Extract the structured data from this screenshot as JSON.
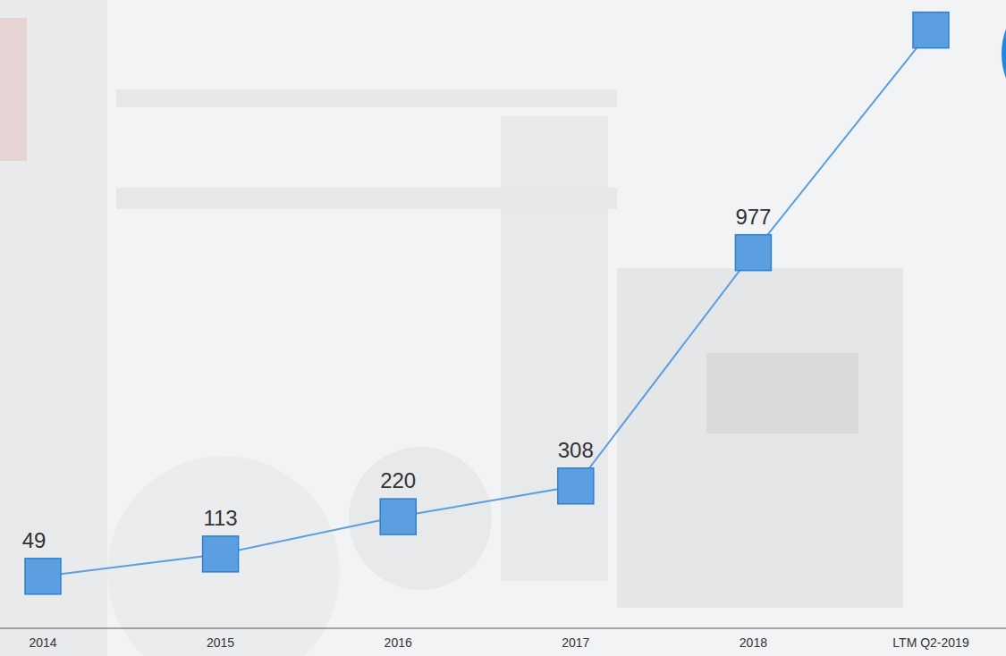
{
  "chart_data": {
    "type": "line",
    "categories": [
      "2014",
      "2015",
      "2016",
      "2017",
      "2018",
      "LTM Q2-2019"
    ],
    "values": [
      49,
      113,
      220,
      308,
      977,
      1615
    ],
    "value_labels": [
      "49",
      "113",
      "220",
      "308",
      "977",
      null
    ],
    "data_labels": true,
    "color": "#5b9fe0",
    "marker": "square",
    "ylim": [
      -100,
      1650
    ],
    "tick_labels": "x",
    "grid": false
  }
}
